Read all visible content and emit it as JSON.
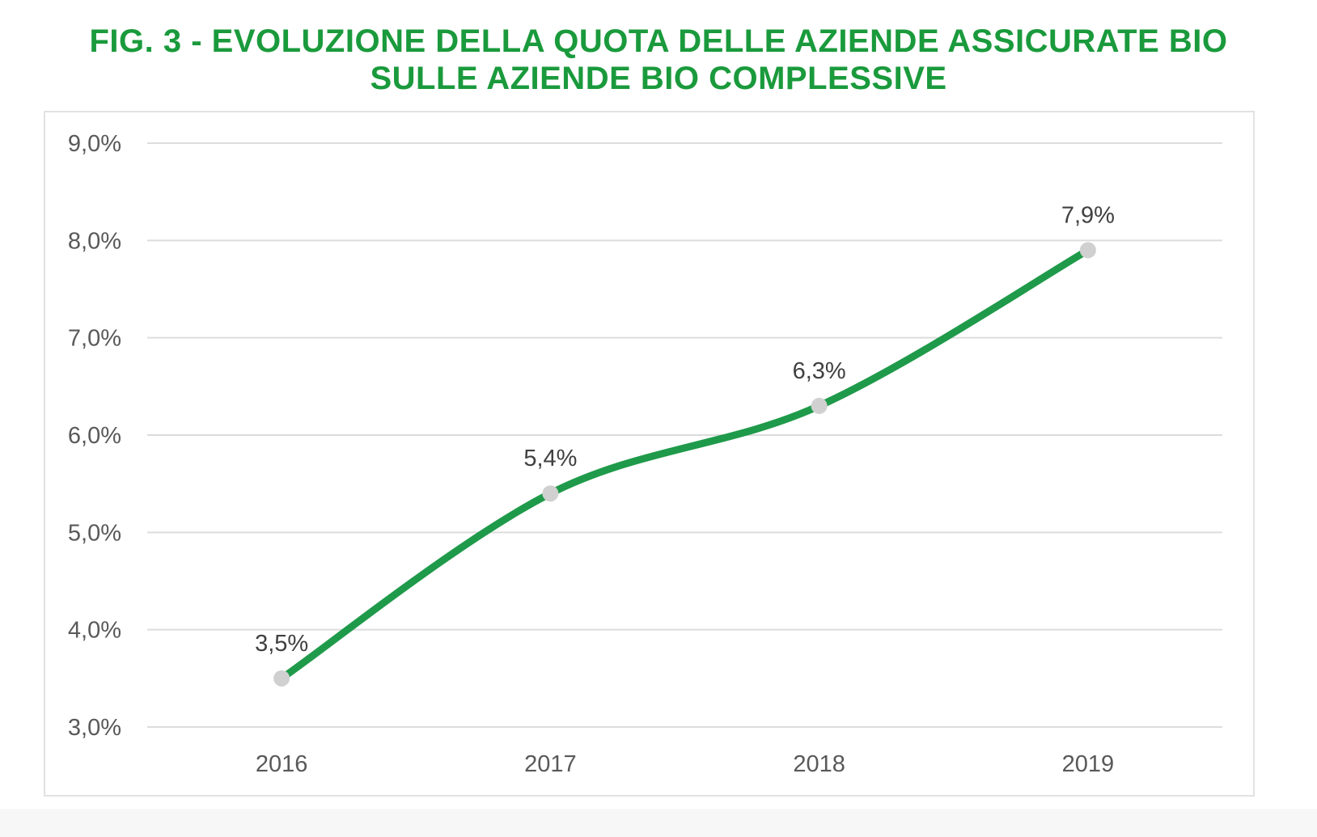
{
  "chart_data": {
    "type": "line",
    "title": [
      "FIG. 3 - EVOLUZIONE DELLA QUOTA DELLE AZIENDE ASSICURATE BIO",
      "SULLE AZIENDE BIO COMPLESSIVE"
    ],
    "categories": [
      "2016",
      "2017",
      "2018",
      "2019"
    ],
    "values": [
      3.5,
      5.4,
      6.3,
      7.9
    ],
    "data_labels": [
      "3,5%",
      "5,4%",
      "6,3%",
      "7,9%"
    ],
    "ylim": [
      3.0,
      9.0
    ],
    "yticks": [
      9.0,
      8.0,
      7.0,
      6.0,
      5.0,
      4.0,
      3.0
    ],
    "ytick_labels": [
      "9,0%",
      "8,0%",
      "7,0%",
      "6,0%",
      "5,0%",
      "4,0%",
      "3,0%"
    ],
    "xlabel": "",
    "ylabel": "",
    "grid": true,
    "smooth": true,
    "colors": {
      "title": "#1a9a3c",
      "line": "#1f9a4a",
      "marker": "#d0d0d0",
      "grid": "#dcdcdc"
    }
  }
}
